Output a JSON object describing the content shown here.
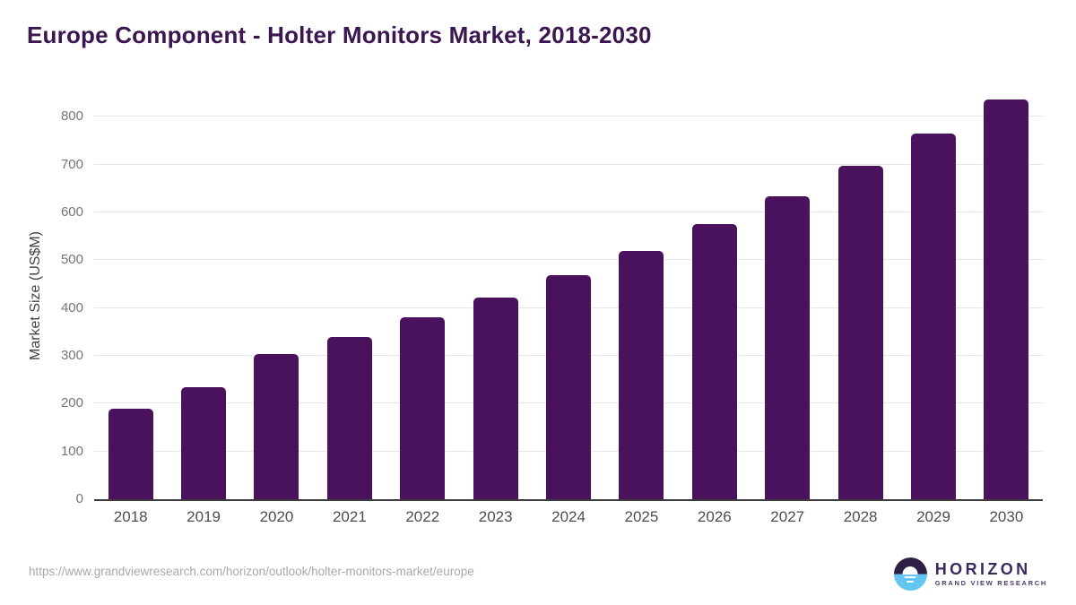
{
  "header": {
    "title": "Europe Component - Holter Monitors Market, 2018-2030"
  },
  "footer": {
    "source_url": "https://www.grandviewresearch.com/horizon/outlook/holter-monitors-market/europe",
    "logo": {
      "name": "HORIZON",
      "subtitle": "GRAND VIEW RESEARCH"
    }
  },
  "colors": {
    "bar": "#4a115c",
    "title_text": "#3b1651",
    "gridline": "#e6e6e6",
    "axis_line": "#3c3c3c",
    "ytick_text": "#757575",
    "xtick_text": "#4d4d4d",
    "url_text": "#a8a8a8",
    "logo_purple": "#3b2a5e",
    "logo_dark_half": "#2e2145",
    "logo_blue_half": "#63c6f0"
  },
  "chart_data": {
    "type": "bar",
    "title": "Europe Component - Holter Monitors Market, 2018-2030",
    "categories": [
      "2018",
      "2019",
      "2020",
      "2021",
      "2022",
      "2023",
      "2024",
      "2025",
      "2026",
      "2027",
      "2028",
      "2029",
      "2030"
    ],
    "values": [
      190,
      235,
      304,
      340,
      380,
      422,
      468,
      520,
      575,
      633,
      697,
      765,
      836
    ],
    "xlabel": "",
    "ylabel": "Market Size (US$M)",
    "ylim": [
      0,
      857
    ],
    "yticks": [
      0,
      100,
      200,
      300,
      400,
      500,
      600,
      700,
      800
    ],
    "grid": "horizontal-only",
    "legend": "none",
    "bar_color": "#4a115c"
  }
}
